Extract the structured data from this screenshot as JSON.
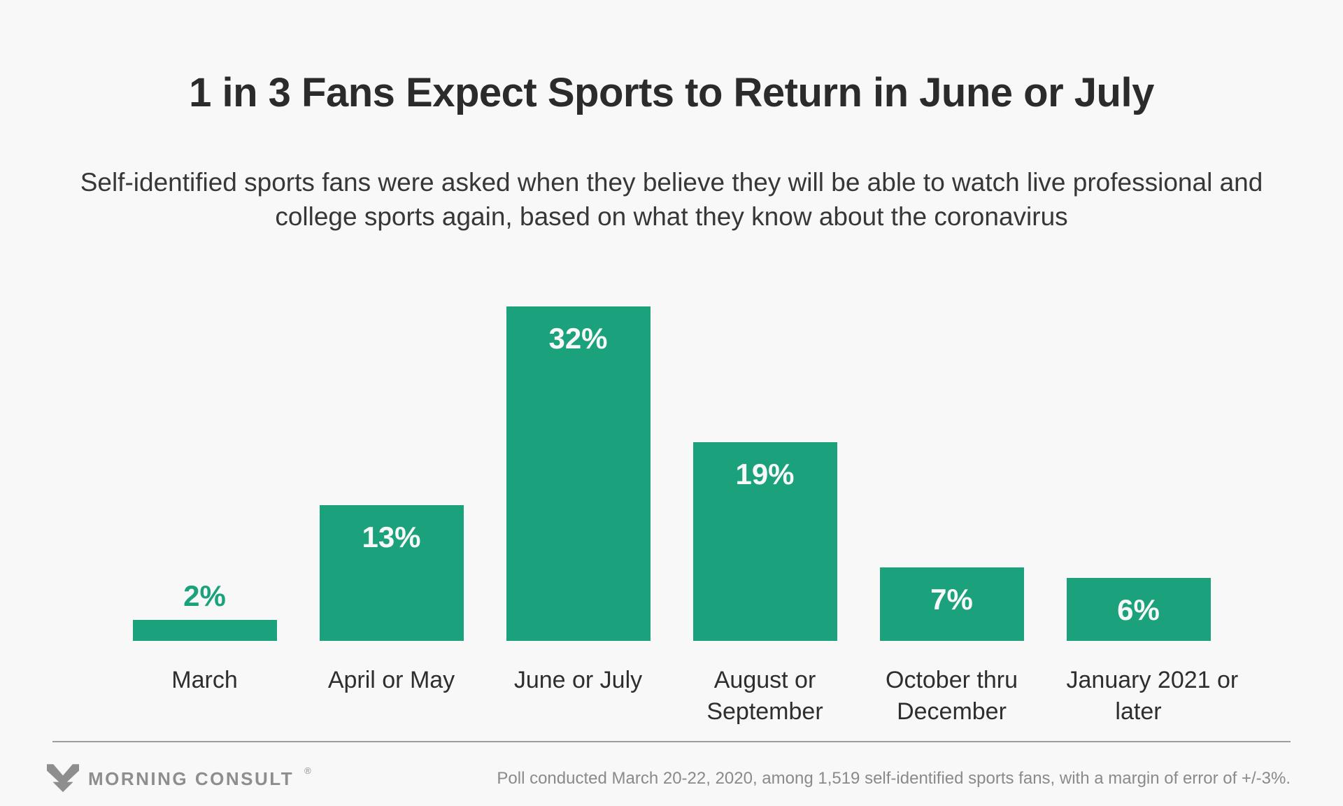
{
  "page": {
    "background_color": "#f8f8f8"
  },
  "header": {
    "title": "1 in 3 Fans Expect Sports to Return in June or July",
    "subtitle": "Self-identified sports fans were asked when they believe they will be able to watch live professional and college sports again, based on what they know about the coronavirus"
  },
  "chart_data": {
    "type": "bar",
    "title": "1 in 3 Fans Expect Sports to Return in June or July",
    "subtitle": "Self-identified sports fans were asked when they believe they will be able to watch live professional and college sports again, based on what they know about the coronavirus",
    "categories": [
      "March",
      "April or May",
      "June or July",
      "August or September",
      "October thru December",
      "January 2021 or later"
    ],
    "category_lines": [
      [
        "March"
      ],
      [
        "April or May"
      ],
      [
        "June or July"
      ],
      [
        "August or",
        "September"
      ],
      [
        "October thru",
        "December"
      ],
      [
        "January 2021 or",
        "later"
      ]
    ],
    "values": [
      2,
      13,
      32,
      19,
      7,
      6
    ],
    "value_labels": [
      "2%",
      "13%",
      "32%",
      "19%",
      "7%",
      "6%"
    ],
    "unit": "%",
    "xlabel": "",
    "ylabel": "",
    "ylim": [
      0,
      32
    ],
    "grid": false,
    "legend": null,
    "bar_color": "#1ba27c",
    "value_label_color_inside": "#f8f8f8",
    "value_label_color_outside": "#1ba27c"
  },
  "footer": {
    "brand": "MORNING CONSULT",
    "brand_trademark": "®",
    "note": "Poll conducted March 20-22, 2020, among 1,519 self-identified sports fans, with a margin of error of +/-3%."
  }
}
